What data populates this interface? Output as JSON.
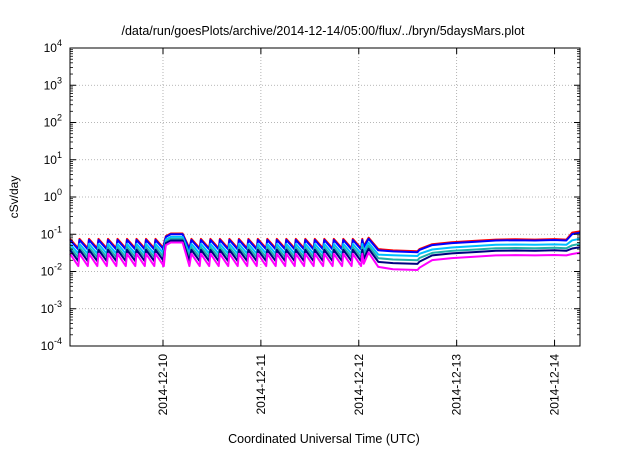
{
  "chart_data": {
    "type": "line",
    "title": "/data/run/goesPlots/archive/2014-12-14/05:00/flux/../bryn/5daysMars.plot",
    "xlabel": "Coordinated Universal Time (UTC)",
    "ylabel": "cSv/day",
    "yscale": "log",
    "ylim": [
      0.0001,
      10000
    ],
    "y_ticks": [
      {
        "base": "10",
        "exp": "-4"
      },
      {
        "base": "10",
        "exp": "-3"
      },
      {
        "base": "10",
        "exp": "-2"
      },
      {
        "base": "10",
        "exp": "-1"
      },
      {
        "base": "10",
        "exp": "0"
      },
      {
        "base": "10",
        "exp": "1"
      },
      {
        "base": "10",
        "exp": "2"
      },
      {
        "base": "10",
        "exp": "3"
      },
      {
        "base": "10",
        "exp": "4"
      }
    ],
    "xlim": [
      9.05,
      14.26
    ],
    "x_ticks": [
      {
        "label": "2014-12-10",
        "day": 10
      },
      {
        "label": "2014-12-11",
        "day": 11
      },
      {
        "label": "2014-12-12",
        "day": 12
      },
      {
        "label": "2014-12-13",
        "day": 13
      },
      {
        "label": "2014-12-14",
        "day": 14
      }
    ],
    "grid": true,
    "legend": "none",
    "series": [
      {
        "color": "#ff0000",
        "peak": 0.075,
        "trough": 0.042,
        "flare": 0.105,
        "dip": 0.035,
        "late": 0.072,
        "end": 0.12
      },
      {
        "color": "#0000ff",
        "peak": 0.07,
        "trough": 0.039,
        "flare": 0.1,
        "dip": 0.033,
        "late": 0.068,
        "end": 0.11
      },
      {
        "color": "#00bfff",
        "peak": 0.055,
        "trough": 0.03,
        "flare": 0.085,
        "dip": 0.026,
        "late": 0.052,
        "end": 0.075
      },
      {
        "color": "#20b2aa",
        "peak": 0.045,
        "trough": 0.024,
        "flare": 0.075,
        "dip": 0.02,
        "late": 0.042,
        "end": 0.055
      },
      {
        "color": "#000080",
        "peak": 0.038,
        "trough": 0.019,
        "flare": 0.068,
        "dip": 0.016,
        "late": 0.036,
        "end": 0.045
      },
      {
        "color": "#ff00ff",
        "peak": 0.03,
        "trough": 0.014,
        "flare": 0.06,
        "dip": 0.011,
        "late": 0.027,
        "end": 0.032
      }
    ]
  }
}
